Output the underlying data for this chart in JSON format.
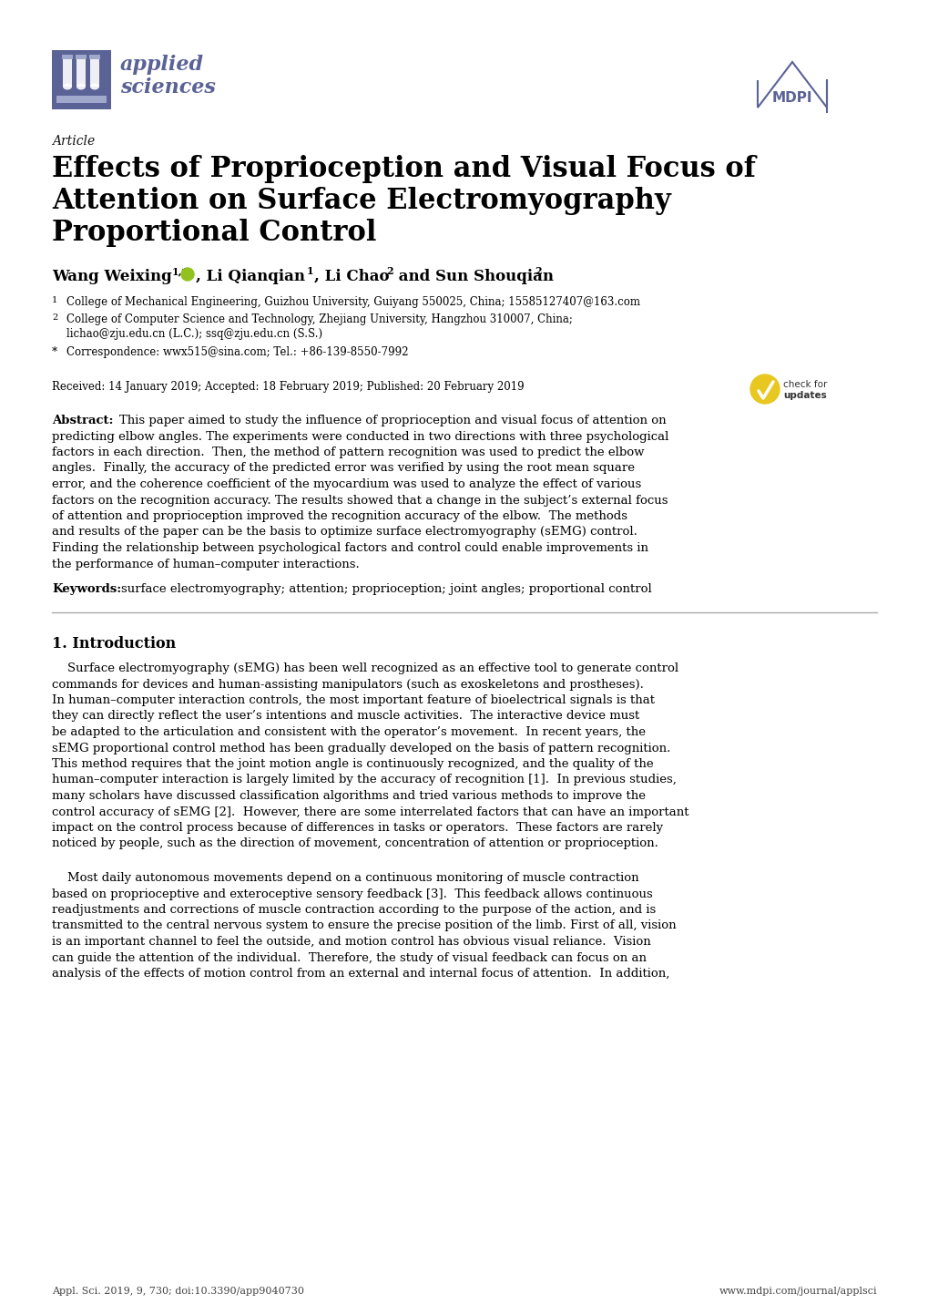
{
  "title_article": "Article",
  "title_main_line1": "Effects of Proprioception and Visual Focus of",
  "title_main_line2": "Attention on Surface Electromyography",
  "title_main_line3": "Proportional Control",
  "received": "Received: 14 January 2019; Accepted: 18 February 2019; Published: 20 February 2019",
  "abstract_wrapped": "Abstract: This paper aimed to study the influence of proprioception and visual focus of attention on\npredicting elbow angles. The experiments were conducted in two directions with three psychological\nfactors in each direction.  Then, the method of pattern recognition was used to predict the elbow\nangles.  Finally, the accuracy of the predicted error was verified by using the root mean square\nerror, and the coherence coefficient of the myocardium was used to analyze the effect of various\nfactors on the recognition accuracy. The results showed that a change in the subject’s external focus\nof attention and proprioception improved the recognition accuracy of the elbow.  The methods\nand results of the paper can be the basis to optimize surface electromyography (sEMG) control.\nFinding the relationship between psychological factors and control could enable improvements in\nthe performance of human–computer interactions.",
  "keywords_text": "surface electromyography; attention; proprioception; joint angles; proportional control",
  "section1_title": "1. Introduction",
  "p1": "    Surface electromyography (sEMG) has been well recognized as an effective tool to generate control\ncommands for devices and human-assisting manipulators (such as exoskeletons and prostheses).\nIn human–computer interaction controls, the most important feature of bioelectrical signals is that\nthey can directly reflect the user’s intentions and muscle activities.  The interactive device must\nbe adapted to the articulation and consistent with the operator’s movement.  In recent years, the\nsEMG proportional control method has been gradually developed on the basis of pattern recognition.\nThis method requires that the joint motion angle is continuously recognized, and the quality of the\nhuman–computer interaction is largely limited by the accuracy of recognition [1].  In previous studies,\nmany scholars have discussed classification algorithms and tried various methods to improve the\ncontrol accuracy of sEMG [2].  However, there are some interrelated factors that can have an important\nimpact on the control process because of differences in tasks or operators.  These factors are rarely\nnoticed by people, such as the direction of movement, concentration of attention or proprioception.",
  "p2": "    Most daily autonomous movements depend on a continuous monitoring of muscle contraction\nbased on proprioceptive and exteroceptive sensory feedback [3].  This feedback allows continuous\nreadjustments and corrections of muscle contraction according to the purpose of the action, and is\ntransmitted to the central nervous system to ensure the precise position of the limb. First of all, vision\nis an important channel to feel the outside, and motion control has obvious visual reliance.  Vision\ncan guide the attention of the individual.  Therefore, the study of visual feedback can focus on an\nanalysis of the effects of motion control from an external and internal focus of attention.  In addition,",
  "footer_left": "Appl. Sci. 2019, 9, 730; doi:10.3390/app9040730",
  "footer_right": "www.mdpi.com/journal/applsci",
  "bg_color": "#ffffff",
  "text_color": "#000000",
  "logo_color": "#5a6296",
  "logo_light": "#a0a8cc"
}
